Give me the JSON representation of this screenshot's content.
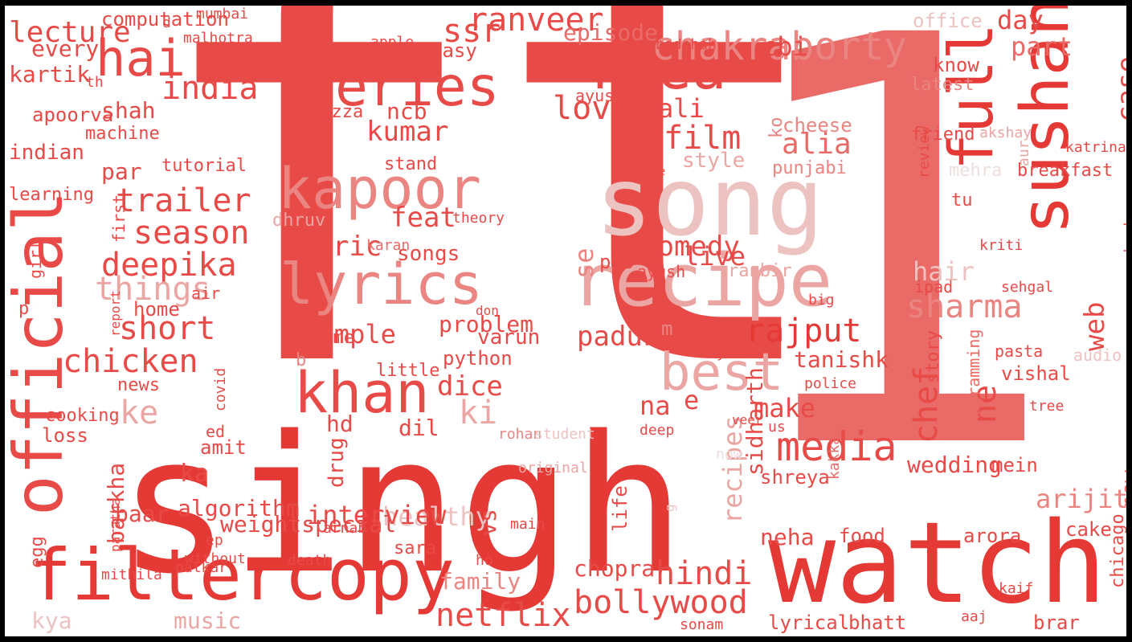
{
  "palette": {
    "c1": "#e53935",
    "c2": "#e84a47",
    "c3": "#e96a66",
    "c4": "#ea8582",
    "c5": "#eba5a3",
    "c6": "#edc3c2",
    "c7": "#efdede"
  },
  "words": [
    {
      "t": "ft",
      "c": "c2"
    },
    {
      "t": "1",
      "c": "c3"
    },
    {
      "t": "singh",
      "c": "c1"
    },
    {
      "t": "watch",
      "c": "c1"
    },
    {
      "t": "song",
      "c": "c6"
    },
    {
      "t": "recipe",
      "c": "c5"
    },
    {
      "t": "sushant",
      "c": "c1"
    },
    {
      "t": "full",
      "c": "c1"
    },
    {
      "t": "official",
      "c": "c2"
    },
    {
      "t": "filtercopy",
      "c": "c1"
    },
    {
      "t": "lyrics",
      "c": "c4"
    },
    {
      "t": "kapoor",
      "c": "c4"
    },
    {
      "t": "rhea",
      "c": "c2"
    },
    {
      "t": "series",
      "c": "c2"
    },
    {
      "t": "khan",
      "c": "c2"
    },
    {
      "t": "best",
      "c": "c5"
    },
    {
      "t": "hai",
      "c": "c2"
    },
    {
      "t": "chakraborty",
      "c": "c4"
    },
    {
      "t": "bollywood",
      "c": "c2"
    },
    {
      "t": "ki",
      "c": "c5"
    },
    {
      "t": "ke",
      "c": "c5"
    },
    {
      "t": "netflix",
      "c": "c2"
    },
    {
      "t": "hindi",
      "c": "c2"
    },
    {
      "t": "chicken",
      "c": "c2"
    },
    {
      "t": "love",
      "c": "c2"
    },
    {
      "t": "ranveer",
      "c": "c2"
    },
    {
      "t": "media",
      "c": "c2"
    },
    {
      "t": "chef",
      "c": "c2"
    },
    {
      "t": "ne",
      "c": "c2"
    },
    {
      "t": "web",
      "c": "c2"
    },
    {
      "t": "case",
      "c": "c2"
    },
    {
      "t": "sharma",
      "c": "c4"
    },
    {
      "t": "rajput",
      "c": "c1"
    },
    {
      "t": "trailer",
      "c": "c2"
    },
    {
      "t": "season",
      "c": "c2"
    },
    {
      "t": "deepika",
      "c": "c2"
    },
    {
      "t": "things",
      "c": "c5"
    },
    {
      "t": "short",
      "c": "c2"
    },
    {
      "t": "india",
      "c": "c2"
    },
    {
      "t": "dice",
      "c": "c2"
    },
    {
      "t": "feat",
      "c": "c2"
    },
    {
      "t": "lyric",
      "c": "c2"
    },
    {
      "t": "kumar",
      "c": "c2"
    },
    {
      "t": "film",
      "c": "c2"
    },
    {
      "t": "alia",
      "c": "c3"
    },
    {
      "t": "ali",
      "c": "c2"
    },
    {
      "t": "cbi",
      "c": "c2"
    },
    {
      "t": "day",
      "c": "c2"
    },
    {
      "t": "part",
      "c": "c3"
    },
    {
      "t": "ssr",
      "c": "c2"
    },
    {
      "t": "episode",
      "c": "c3"
    },
    {
      "t": "padukone",
      "c": "c2"
    },
    {
      "t": "comedy",
      "c": "c2"
    },
    {
      "t": "live",
      "c": "c2"
    },
    {
      "t": "e",
      "c": "c2"
    },
    {
      "t": "make",
      "c": "c2"
    },
    {
      "t": "na",
      "c": "c2"
    },
    {
      "t": "hair",
      "c": "c6"
    },
    {
      "t": "se",
      "c": "c4"
    },
    {
      "t": "recipes",
      "c": "c5"
    },
    {
      "t": "new",
      "c": "c3"
    },
    {
      "t": "arijit",
      "c": "c4"
    },
    {
      "t": "kya",
      "c": "c6"
    },
    {
      "t": "music",
      "c": "c5"
    },
    {
      "t": "family",
      "c": "c4"
    },
    {
      "t": "healthy",
      "c": "c6"
    },
    {
      "t": "interview",
      "c": "c2"
    },
    {
      "t": "ka",
      "c": "c2"
    },
    {
      "t": "algorithm",
      "c": "c2"
    },
    {
      "t": "weightspecial",
      "c": "c2"
    },
    {
      "t": "hd",
      "c": "c2"
    },
    {
      "t": "dil",
      "c": "c2"
    },
    {
      "t": "vs",
      "c": "c2"
    },
    {
      "t": "chopra",
      "c": "c2"
    },
    {
      "t": "neha",
      "c": "c2"
    },
    {
      "t": "food",
      "c": "c2"
    },
    {
      "t": "arora",
      "c": "c2"
    },
    {
      "t": "cake",
      "c": "c2"
    },
    {
      "t": "lyrical",
      "c": "c2"
    },
    {
      "t": "bhatt",
      "c": "c2"
    },
    {
      "t": "brar",
      "c": "c2"
    },
    {
      "t": "chicago",
      "c": "c2"
    },
    {
      "t": "wedding",
      "c": "c2"
    },
    {
      "t": "mein",
      "c": "c2"
    },
    {
      "t": "vishal",
      "c": "c2"
    },
    {
      "t": "tanishk",
      "c": "c2"
    },
    {
      "t": "sidharth",
      "c": "c2"
    },
    {
      "t": "shreya",
      "c": "c2"
    },
    {
      "t": "life",
      "c": "c2"
    },
    {
      "t": "barkha",
      "c": "c2"
    },
    {
      "t": "baar",
      "c": "c2"
    },
    {
      "t": "drug",
      "c": "c2"
    },
    {
      "t": "amit",
      "c": "c2"
    },
    {
      "t": "loss",
      "c": "c2"
    },
    {
      "t": "cooking",
      "c": "c2"
    },
    {
      "t": "news",
      "c": "c2"
    },
    {
      "t": "ed",
      "c": "c2"
    },
    {
      "t": "sara",
      "c": "c2"
    },
    {
      "t": "egg",
      "c": "c2"
    },
    {
      "t": "lecture",
      "c": "c2"
    },
    {
      "t": "every",
      "c": "c2"
    },
    {
      "t": "kartik",
      "c": "c2"
    },
    {
      "t": "computation",
      "c": "c2"
    },
    {
      "t": "shah",
      "c": "c2"
    },
    {
      "t": "apoorva",
      "c": "c2"
    },
    {
      "t": "ncb",
      "c": "c2"
    },
    {
      "t": "easy",
      "c": "c2"
    },
    {
      "t": "pizza",
      "c": "c2"
    },
    {
      "t": "machine",
      "c": "c2"
    },
    {
      "t": "indian",
      "c": "c2"
    },
    {
      "t": "par",
      "c": "c2"
    },
    {
      "t": "tutorial",
      "c": "c2"
    },
    {
      "t": "learning",
      "c": "c2"
    },
    {
      "t": "first",
      "c": "c2"
    },
    {
      "t": "girl",
      "c": "c2"
    },
    {
      "t": "p",
      "c": "c2"
    },
    {
      "t": "home",
      "c": "c2"
    },
    {
      "t": "songs",
      "c": "c2"
    },
    {
      "t": "stand",
      "c": "c2"
    },
    {
      "t": "example",
      "c": "c2"
    },
    {
      "t": "problem",
      "c": "c2"
    },
    {
      "t": "time",
      "c": "c2"
    },
    {
      "t": "varun",
      "c": "c2"
    },
    {
      "t": "python",
      "c": "c2"
    },
    {
      "t": "little",
      "c": "c2"
    },
    {
      "t": "b",
      "c": "c4"
    },
    {
      "t": "m",
      "c": "c4"
    },
    {
      "t": "style",
      "c": "c5"
    },
    {
      "t": "ko",
      "c": "c4"
    },
    {
      "t": "cheese",
      "c": "c4"
    },
    {
      "t": "punjabi",
      "c": "c4"
    },
    {
      "t": "dhruv",
      "c": "c5"
    },
    {
      "t": "theory",
      "c": "c2"
    },
    {
      "t": "karan",
      "c": "c3"
    },
    {
      "t": "pro",
      "c": "c2"
    },
    {
      "t": "ayush",
      "c": "c2"
    },
    {
      "t": "ranbir",
      "c": "c5"
    },
    {
      "t": "latest",
      "c": "c4"
    },
    {
      "t": "friend",
      "c": "c2"
    },
    {
      "t": "akshay",
      "c": "c5"
    },
    {
      "t": "aur",
      "c": "c5"
    },
    {
      "t": "mehra",
      "c": "c7"
    },
    {
      "t": "breakfast",
      "c": "c2"
    },
    {
      "t": "katrina",
      "c": "c2"
    },
    {
      "t": "review",
      "c": "c2"
    },
    {
      "t": "tu",
      "c": "c2"
    },
    {
      "t": "macbook",
      "c": "c2"
    },
    {
      "t": "kriti",
      "c": "c2"
    },
    {
      "t": "ipad",
      "c": "c2"
    },
    {
      "t": "sehgal",
      "c": "c2"
    },
    {
      "t": "big",
      "c": "c2"
    },
    {
      "t": "story",
      "c": "c2"
    },
    {
      "t": "programming",
      "c": "c3"
    },
    {
      "t": "pasta",
      "c": "c2"
    },
    {
      "t": "audio",
      "c": "c6"
    },
    {
      "t": "tree",
      "c": "c2"
    },
    {
      "t": "know",
      "c": "c2"
    },
    {
      "t": "office",
      "c": "c6"
    },
    {
      "t": "ayushmann",
      "c": "c2"
    },
    {
      "t": "badshah",
      "c": "c2"
    },
    {
      "t": "apple",
      "c": "c2"
    },
    {
      "t": "malhotra",
      "c": "c2"
    },
    {
      "t": "d",
      "c": "c2"
    },
    {
      "t": "mumbai",
      "c": "c2"
    },
    {
      "t": "th",
      "c": "c2"
    },
    {
      "t": "air",
      "c": "c2"
    },
    {
      "t": "report",
      "c": "c2"
    },
    {
      "t": "covid",
      "c": "c2"
    },
    {
      "t": "don",
      "c": "c2"
    },
    {
      "t": "system",
      "c": "c2"
    },
    {
      "t": "police",
      "c": "c2"
    },
    {
      "t": "us",
      "c": "c2"
    },
    {
      "t": "deep",
      "c": "c2"
    },
    {
      "t": "veer",
      "c": "c2"
    },
    {
      "t": "now",
      "c": "c7"
    },
    {
      "t": "kakkar",
      "c": "c3"
    },
    {
      "t": "rohan",
      "c": "c4"
    },
    {
      "t": "student",
      "c": "c6"
    },
    {
      "t": "original",
      "c": "c5"
    },
    {
      "t": "g",
      "c": "c6"
    },
    {
      "t": "main",
      "c": "c2"
    },
    {
      "t": "ho",
      "c": "c2"
    },
    {
      "t": "death",
      "c": "c2"
    },
    {
      "t": "without",
      "c": "c2"
    },
    {
      "t": "ep",
      "c": "c2"
    },
    {
      "t": "arnab",
      "c": "c2"
    },
    {
      "t": "paratha",
      "c": "c2"
    },
    {
      "t": "palkar",
      "c": "c2"
    },
    {
      "t": "mithila",
      "c": "c2"
    },
    {
      "t": "sonam",
      "c": "c2"
    },
    {
      "t": "kaif",
      "c": "c2"
    },
    {
      "t": "aaj",
      "c": "c2"
    },
    {
      "t": "one",
      "c": "c2"
    },
    {
      "t": "n",
      "c": "c2"
    },
    {
      "t": "c",
      "c": "c2"
    },
    {
      "t": "anushka",
      "c": "c2"
    },
    {
      "t": "viraj",
      "c": "c2"
    },
    {
      "t": "x",
      "c": "c2"
    },
    {
      "t": "ek",
      "c": "c2"
    }
  ]
}
